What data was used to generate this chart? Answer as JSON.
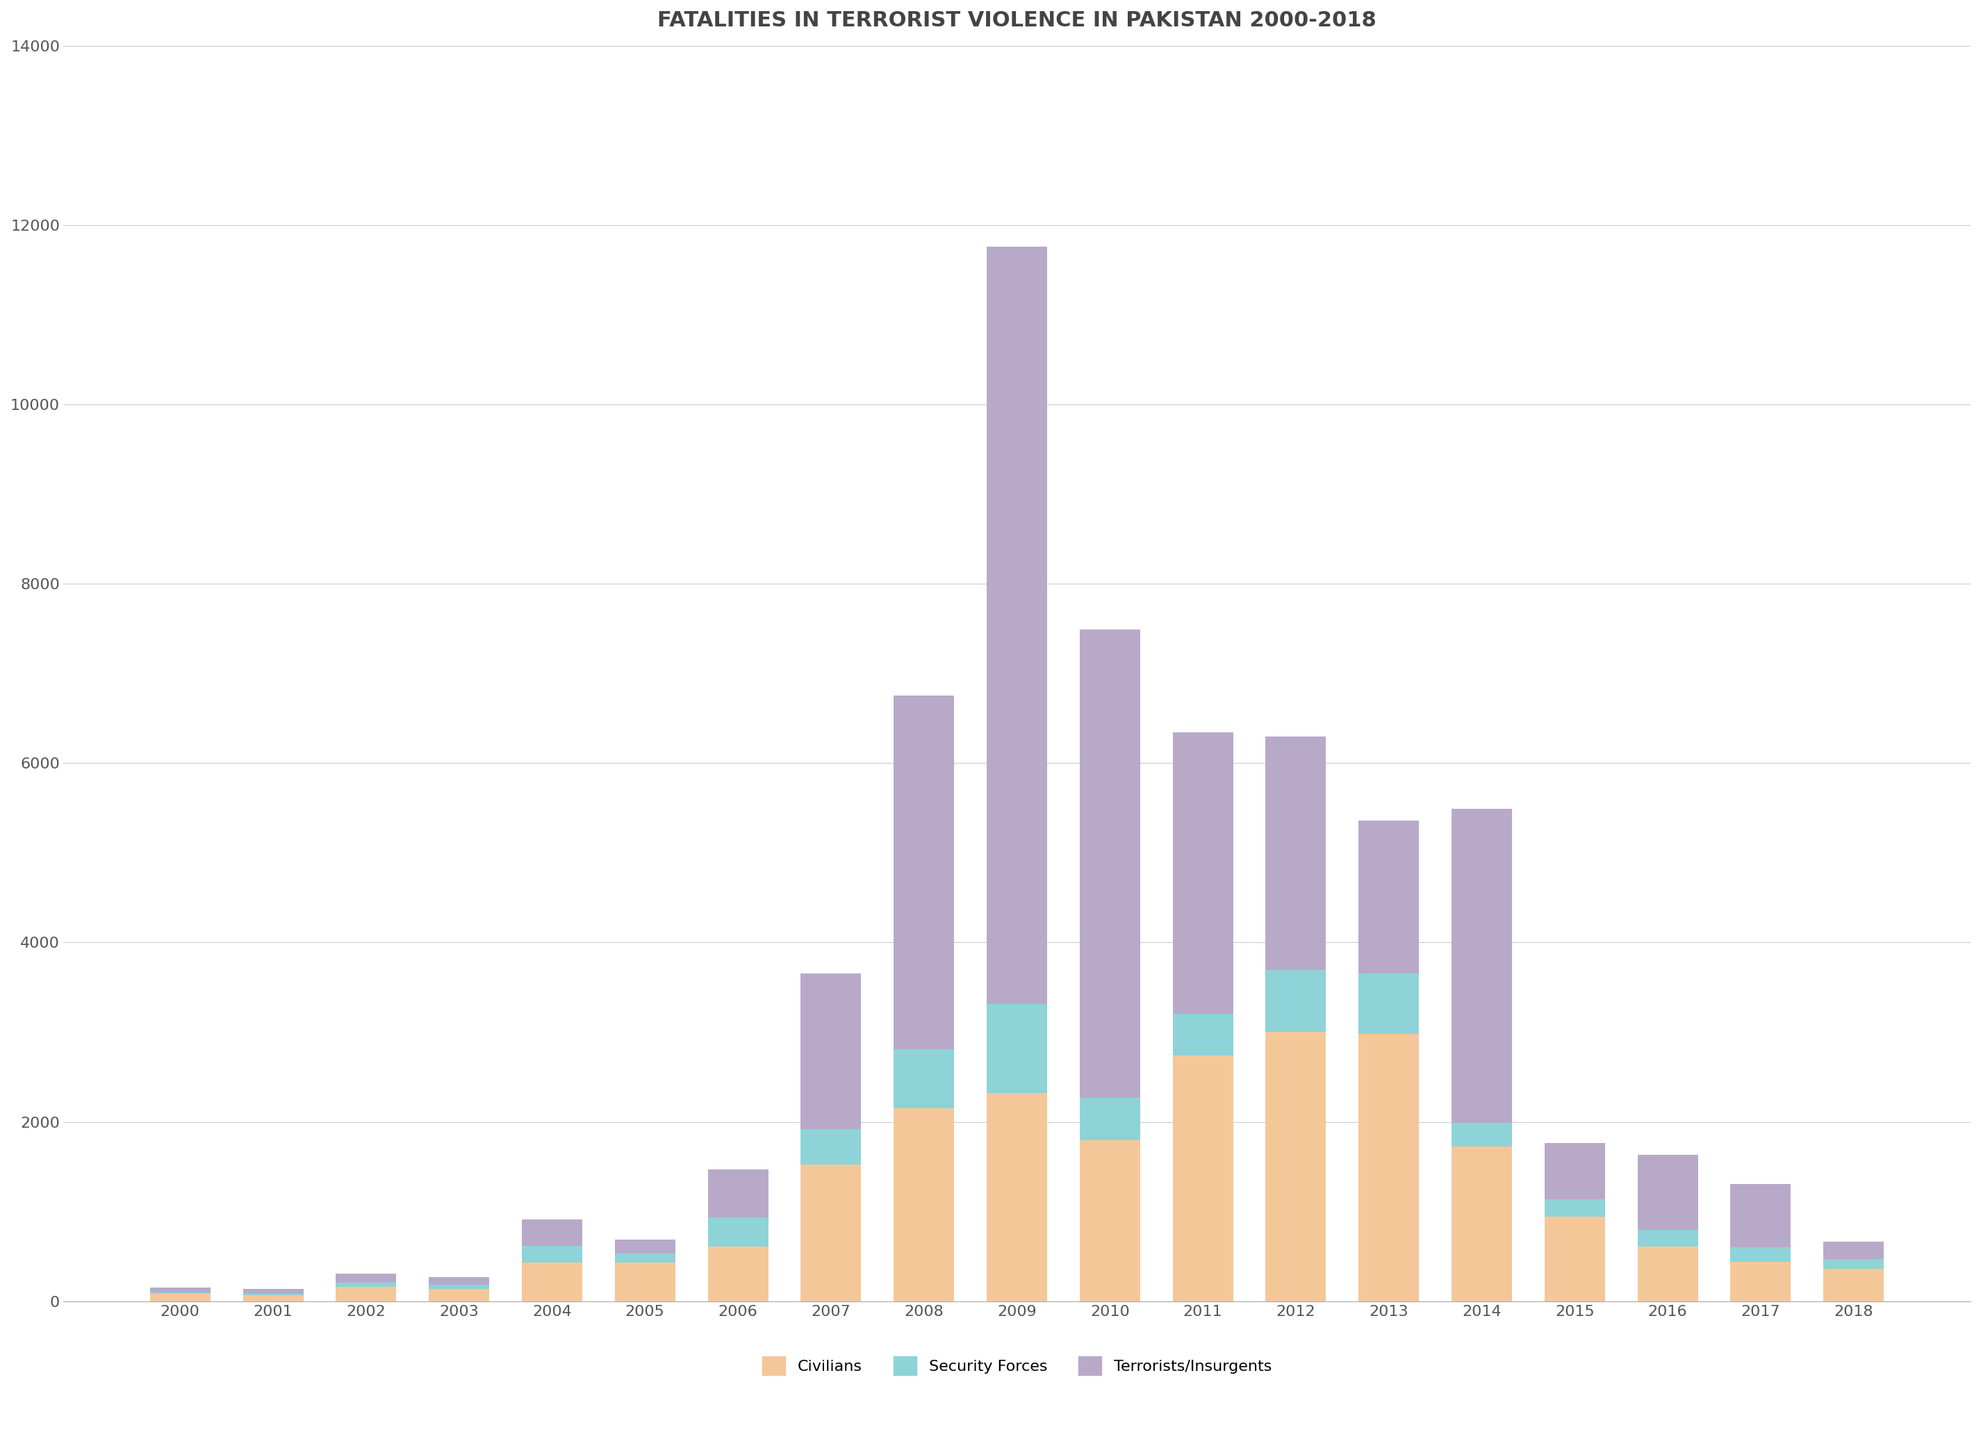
{
  "title": "FATALITIES IN TERRORIST VIOLENCE IN PAKISTAN 2000-2018",
  "years": [
    2000,
    2001,
    2002,
    2003,
    2004,
    2005,
    2006,
    2007,
    2008,
    2009,
    2010,
    2011,
    2012,
    2013,
    2014,
    2015,
    2016,
    2017,
    2018
  ],
  "civilians": [
    80,
    70,
    160,
    140,
    430,
    430,
    608,
    1523,
    2155,
    2324,
    1796,
    2738,
    3007,
    2981,
    1723,
    940,
    610,
    440,
    360
  ],
  "security_forces": [
    15,
    15,
    45,
    45,
    185,
    100,
    325,
    399,
    654,
    991,
    469,
    469,
    684,
    676,
    267,
    195,
    185,
    165,
    110
  ],
  "terrorists": [
    55,
    55,
    100,
    80,
    300,
    155,
    535,
    1731,
    3947,
    8443,
    5223,
    3134,
    2606,
    1700,
    3502,
    632,
    839,
    700,
    190
  ],
  "colors": {
    "civilians": "#F4C799",
    "security_forces": "#8DD3D7",
    "terrorists": "#B8A9C9"
  },
  "ylim": [
    0,
    14000
  ],
  "yticks": [
    0,
    2000,
    4000,
    6000,
    8000,
    10000,
    12000,
    14000
  ],
  "background_color": "#FFFFFF",
  "grid_color": "#CCCCCC",
  "title_fontsize": 22,
  "tick_fontsize": 16,
  "legend_fontsize": 16
}
